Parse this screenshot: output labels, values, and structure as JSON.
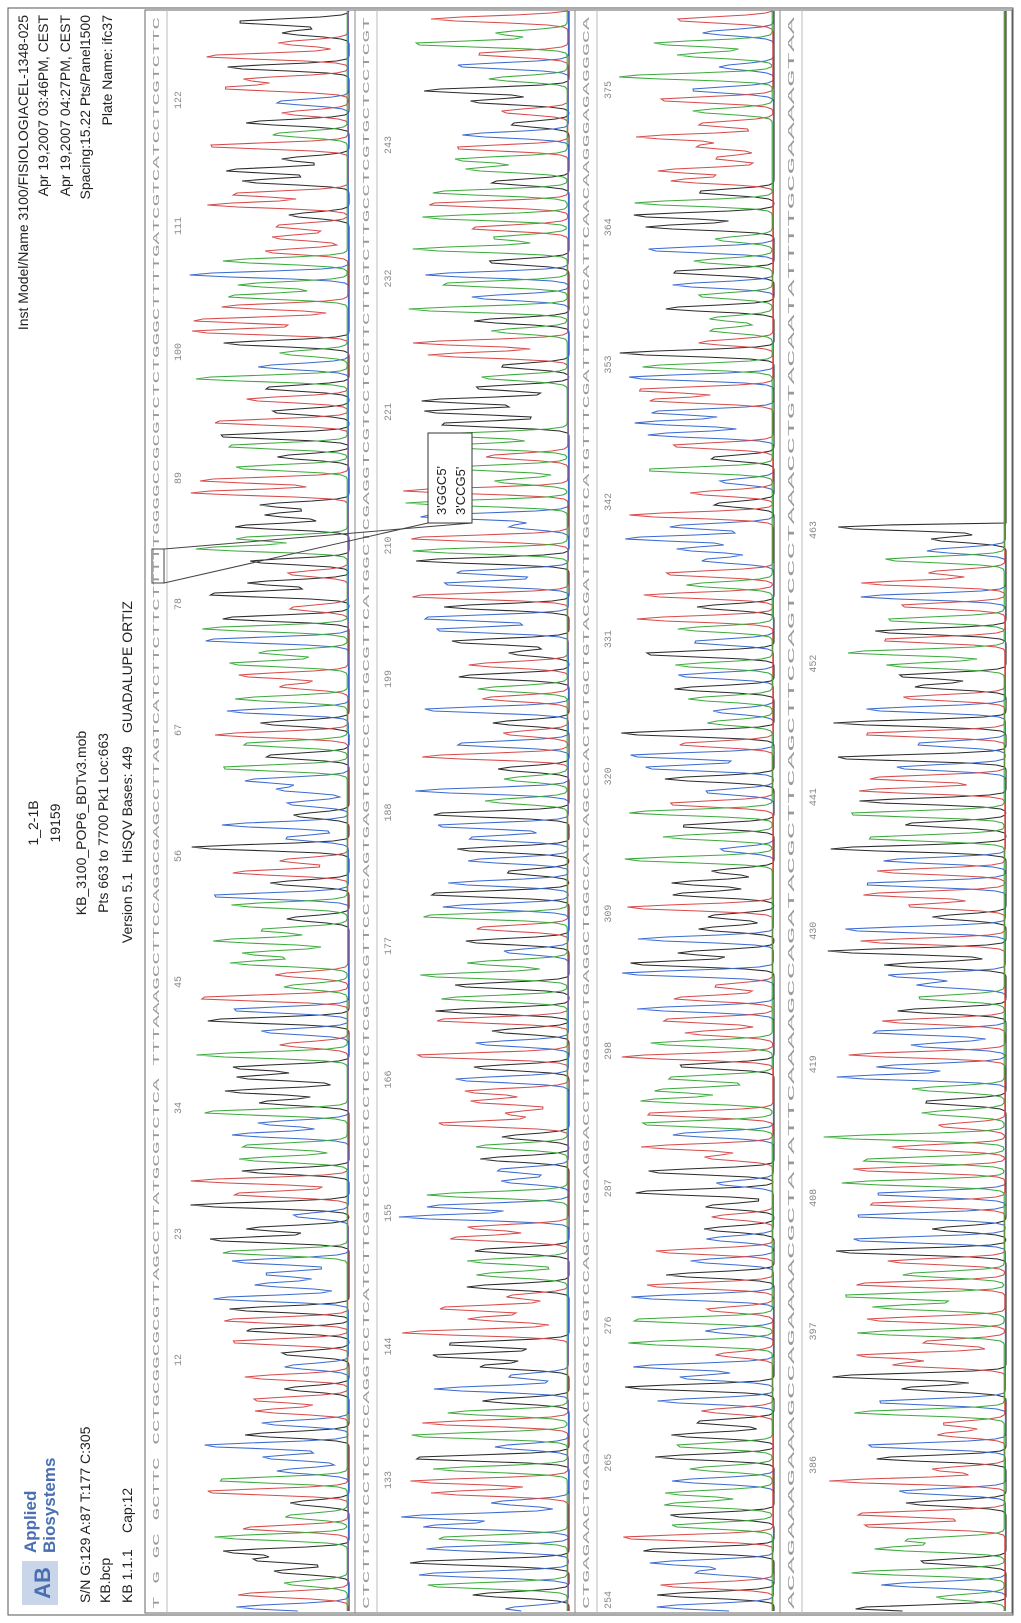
{
  "header": {
    "logo": [
      "Applied",
      "Biosystems"
    ],
    "left": [
      "S/N G:129 A:87 T:177 C:305",
      "KB.bcp",
      "KB 1.1.1",
      "Cap:12"
    ],
    "center": [
      "1_2-1B",
      "19159",
      "KB_3100_POP6_BDTv3.mob",
      "Pts 663 to 7700 Pk1 Loc:663",
      "Version 5.1",
      "HiSQV Bases: 449",
      "GUADALUPE ORTIZ"
    ],
    "right": [
      "Inst Model/Name 3100/FISIOLOGIACEL-1348-025",
      "Apr 19,2007 03:46PM, CEST",
      "Apr 19,2007 04:27PM, CEST",
      "Spacing:15.22 Pts/Panel1500",
      "Plate Name: ifc37"
    ]
  },
  "rows": [
    {
      "sequence": "T G GC GCTTC CCTGCGGCGCGTTAGCCTTATGCGTCTCA TTTAAAGCCTTCCAGGCGAGCCTTAGTCATCTTCTTCTTTTTGGGGCCGCGTCTCTGGGCTTTTGATCGTCATCCTCGTCTTC",
      "positions": [
        12,
        23,
        34,
        45,
        56,
        67,
        78,
        89,
        100,
        111,
        122
      ]
    },
    {
      "sequence": "CTCTTCTTCCTCTTCCAGGTCCTCATCTTCGTCCTCCTCCTCTCTCGCCCGTTCCTCAGTGAGTCCTCCTCTGCGTTCATGGCTCGAGGTCGTCCTCCTTCTTGTCTTGCCTCGTGCTCCTCGT",
      "positions": [
        133,
        144,
        155,
        166,
        177,
        188,
        199,
        210,
        221,
        232,
        243
      ]
    },
    {
      "sequence": "CTGAGAACTGAGACACTCGTCTGTCCAGCTTGGAGGACCTTGGGGCTGAGGCTGGCCATCAGCCCACTCTGCTGTACGATTTGGTCATGTTTCGATTTCCTCATTCAACAAGGGAGAGGGCA",
      "positions": [
        254,
        265,
        276,
        287,
        298,
        309,
        320,
        331,
        342,
        353,
        364,
        375
      ]
    },
    {
      "sequence": "ACAGAAAGAAAGCCAGAAAACGCTATATTCAAAAGCCAGATACGCTTCAGCTTCCAGTCCCTAAACCTGTACAATATTTTGCGAAAAGTAA",
      "positions": [
        386,
        397,
        408,
        419,
        430,
        441,
        452,
        463
      ]
    }
  ],
  "callout": [
    "3'GGC5'",
    "3'CCG5'"
  ]
}
